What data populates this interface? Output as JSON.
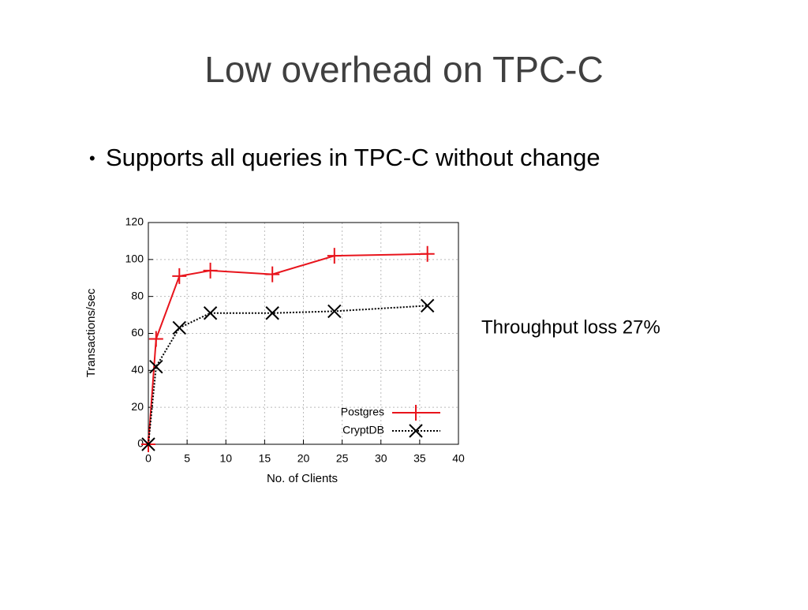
{
  "title": "Low overhead on TPC-C",
  "bullets": [
    "Supports all queries in TPC-C without change"
  ],
  "annotation": "Throughput loss 27%",
  "chart_data": {
    "type": "line",
    "x_label": "No. of Clients",
    "y_label": "Transactions/sec",
    "x": [
      0,
      1,
      4,
      8,
      16,
      24,
      36
    ],
    "series": [
      {
        "name": "Postgres",
        "color": "#e8141c",
        "marker": "plus",
        "dash": false,
        "values": [
          0,
          57,
          91,
          94,
          92,
          102,
          103
        ]
      },
      {
        "name": "CryptDB",
        "color": "#000000",
        "marker": "cross",
        "dash": true,
        "values": [
          0,
          42,
          63,
          71,
          71,
          72,
          75
        ]
      }
    ],
    "xlim": [
      0,
      40
    ],
    "xticks": [
      0,
      5,
      10,
      15,
      20,
      25,
      30,
      35,
      40
    ],
    "ylim": [
      0,
      120
    ],
    "yticks": [
      0,
      20,
      40,
      60,
      80,
      100,
      120
    ],
    "grid": true,
    "legend": "lower right"
  }
}
